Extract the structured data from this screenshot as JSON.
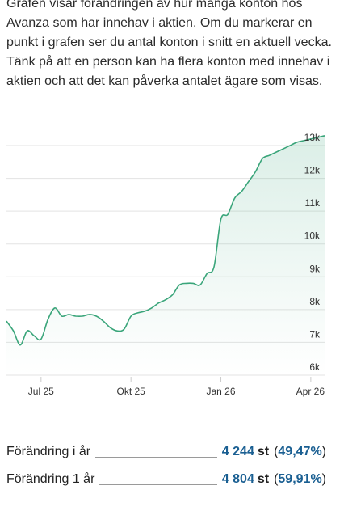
{
  "description": "Grafen visar förändringen av hur många konton hos Avanza som har innehav i aktien. Om du markerar en punkt i grafen ser du antal konton i snitt en aktuell vecka. Tänk på att en person kan ha flera konton med innehav i aktien och att det kan påverka antalet ägare som visas.",
  "colors": {
    "line": "#3aa57a",
    "value": "#1a5f92",
    "grid": "#e3e3e3"
  },
  "chart_data": {
    "type": "area",
    "ylim": [
      6000,
      13000
    ],
    "yticks": [
      6000,
      7000,
      8000,
      9000,
      10000,
      11000,
      12000,
      13000
    ],
    "ytick_labels": [
      "6k",
      "7k",
      "8k",
      "9k",
      "10k",
      "11k",
      "12k",
      "13k"
    ],
    "xticks": [
      {
        "label": "Jul 25",
        "week": 5
      },
      {
        "label": "Okt 25",
        "week": 18
      },
      {
        "label": "Jan 26",
        "week": 31
      },
      {
        "label": "Apr 26",
        "week": 44
      }
    ],
    "x": [
      0,
      1,
      2,
      3,
      4,
      5,
      6,
      7,
      8,
      9,
      10,
      11,
      12,
      13,
      14,
      15,
      16,
      17,
      18,
      19,
      20,
      21,
      22,
      23,
      24,
      25,
      26,
      27,
      28,
      29,
      30,
      31,
      32,
      33,
      34,
      35,
      36,
      37,
      38,
      39,
      40,
      41,
      42,
      43,
      44,
      45,
      46
    ],
    "values": [
      7650,
      7350,
      6920,
      7350,
      7200,
      7100,
      7700,
      8050,
      7800,
      7850,
      7800,
      7800,
      7850,
      7800,
      7650,
      7450,
      7350,
      7400,
      7800,
      7900,
      7950,
      8050,
      8200,
      8300,
      8450,
      8750,
      8800,
      8800,
      8750,
      9100,
      9300,
      10750,
      10900,
      11400,
      11600,
      11900,
      12200,
      12600,
      12700,
      12800,
      12900,
      13000,
      13100,
      13150,
      13200,
      13250,
      13300
    ]
  },
  "stats": [
    {
      "label": "Förändring i år",
      "value": "4 244",
      "unit": "st",
      "pct": "49,47%"
    },
    {
      "label": "Förändring 1 år",
      "value": "4 804",
      "unit": "st",
      "pct": "59,91%"
    }
  ]
}
